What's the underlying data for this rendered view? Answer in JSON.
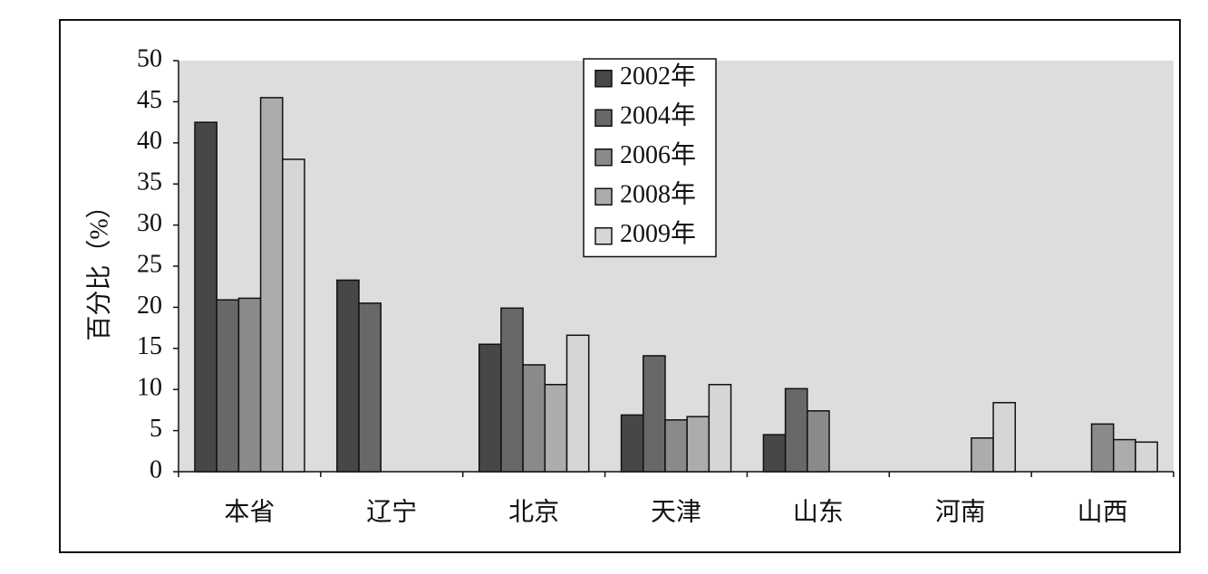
{
  "chart_data": {
    "type": "bar",
    "y_label": "百分比（%）",
    "categories": [
      "本省",
      "辽宁",
      "北京",
      "天津",
      "山东",
      "河南",
      "山西"
    ],
    "series": [
      {
        "name": "2002年",
        "color": "#474747",
        "values": [
          42.5,
          23.3,
          15.5,
          6.9,
          4.5,
          null,
          null
        ]
      },
      {
        "name": "2004年",
        "color": "#686868",
        "values": [
          20.9,
          20.5,
          19.9,
          14.1,
          10.1,
          null,
          null
        ]
      },
      {
        "name": "2006年",
        "color": "#8a8a8a",
        "values": [
          21.1,
          null,
          13.0,
          6.3,
          7.4,
          null,
          5.8
        ]
      },
      {
        "name": "2008年",
        "color": "#acacac",
        "values": [
          45.5,
          null,
          10.6,
          6.7,
          null,
          4.1,
          3.9
        ]
      },
      {
        "name": "2009年",
        "color": "#d6d6d6",
        "values": [
          38.0,
          null,
          16.6,
          10.6,
          null,
          8.4,
          3.6
        ]
      }
    ],
    "ylim": [
      0,
      50
    ],
    "yticks": [
      0,
      5,
      10,
      15,
      20,
      25,
      30,
      35,
      40,
      45,
      50
    ],
    "legend": "top",
    "plot_background": "#dddddd"
  }
}
